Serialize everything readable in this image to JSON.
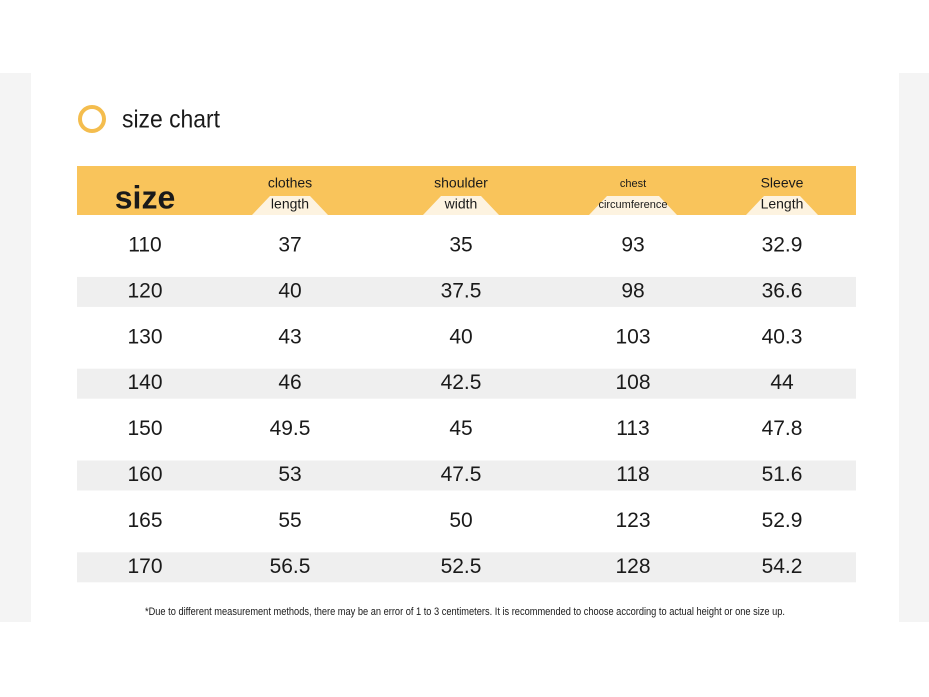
{
  "title": "size chart",
  "table": {
    "headers": [
      [
        "size"
      ],
      [
        "clothes",
        "length"
      ],
      [
        "shoulder",
        "width"
      ],
      [
        "chest",
        "circumference"
      ],
      [
        "Sleeve",
        "Length"
      ]
    ],
    "rows": [
      [
        "110",
        "37",
        "35",
        "93",
        "32.9"
      ],
      [
        "120",
        "40",
        "37.5",
        "98",
        "36.6"
      ],
      [
        "130",
        "43",
        "40",
        "103",
        "40.3"
      ],
      [
        "140",
        "46",
        "42.5",
        "108",
        "44"
      ],
      [
        "150",
        "49.5",
        "45",
        "113",
        "47.8"
      ],
      [
        "160",
        "53",
        "47.5",
        "118",
        "51.6"
      ],
      [
        "165",
        "55",
        "50",
        "123",
        "52.9"
      ],
      [
        "170",
        "56.5",
        "52.5",
        "128",
        "54.2"
      ]
    ]
  },
  "note": "*Due to different measurement methods, there may be an error of 1 to 3 centimeters. It is recommended to choose according to actual height or one size up."
}
